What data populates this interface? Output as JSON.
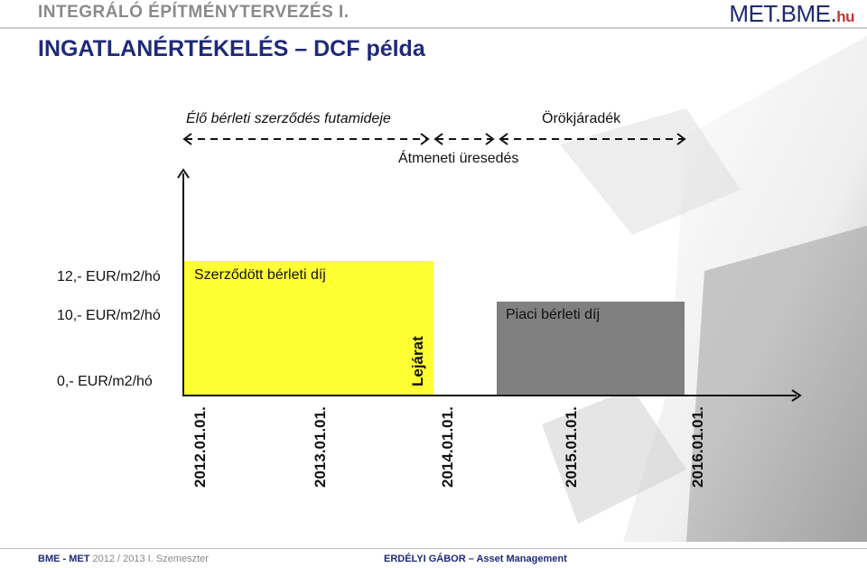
{
  "header": {
    "title": "INTEGRÁLÓ ÉPÍTMÉNYTERVEZÉS I.",
    "logo_main": "MET.BME.",
    "logo_suffix": "hu"
  },
  "slide": {
    "title": "INGATLANÉRTÉKELÉS – DCF példa"
  },
  "diagram": {
    "label_lease": "Élő bérleti szerződés futamideje",
    "label_perpetuity": "Örökjáradék",
    "label_vacancy": "Átmeneti üresedés",
    "y_labels": [
      "12,- EUR/m2/hó",
      "10,- EUR/m2/hó",
      "0,- EUR/m2/hó"
    ],
    "bar_contract_label": "Szerződött bérleti díj",
    "bar_market_label": "Piaci bérleti díj",
    "expiry_label": "Lejárat",
    "dates": [
      "2012.01.01.",
      "2013.01.01.",
      "2014.01.01.",
      "2015.01.01.",
      "2016.01.01."
    ],
    "colors": {
      "contract": "#ffff33",
      "market": "#808080"
    }
  },
  "footer": {
    "left_bold": "BME - MET",
    "left_rest": "2012 / 2013 I. Szemeszter",
    "center": "ERDÉLYI GÁBOR – Asset Management"
  }
}
